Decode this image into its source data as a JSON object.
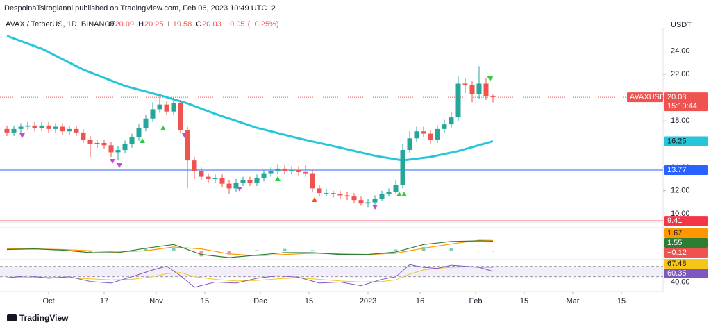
{
  "chart_data": {
    "type": "candlestick",
    "title": "DespoinaTsirogianni published on TradingView.com, Feb 06, 2023 10:49 UTC+2",
    "symbol": "AVAX / TetherUS, 1D, BINANCE",
    "ohlc_legend": [
      {
        "key": "O",
        "value": 20.09
      },
      {
        "key": "H",
        "value": 20.25
      },
      {
        "key": "L",
        "value": 19.58
      },
      {
        "key": "C",
        "value": 20.03
      }
    ],
    "change": {
      "value": -0.05,
      "label": "−0.05"
    },
    "change_pct": {
      "value": -0.25,
      "label": "(−0.25%)"
    },
    "currency": "USDT",
    "brand": "TradingView",
    "symbol_tag": "AVAXUSDT",
    "countdown": "15:10:44",
    "up_color": "#26a69a",
    "down_color": "#ef5350",
    "xlim": [
      -14,
      177
    ],
    "xticks": [
      {
        "value": 0,
        "label": "Oct"
      },
      {
        "value": 16,
        "label": "17"
      },
      {
        "value": 31,
        "label": "Nov"
      },
      {
        "value": 45,
        "label": "15"
      },
      {
        "value": 61,
        "label": "Dec"
      },
      {
        "value": 75,
        "label": "15"
      },
      {
        "value": 92,
        "label": "2023"
      },
      {
        "value": 107,
        "label": "16"
      },
      {
        "value": 123,
        "label": "Feb"
      },
      {
        "value": 137,
        "label": "15"
      },
      {
        "value": 151,
        "label": "Mar"
      },
      {
        "value": 165,
        "label": "15"
      }
    ],
    "ylim": [
      9.3,
      26
    ],
    "yticks": [
      {
        "value": 10,
        "label": "10.00"
      },
      {
        "value": 12,
        "label": "12.00"
      },
      {
        "value": 14,
        "label": "14.00"
      },
      {
        "value": 16,
        "label": "16.00"
      },
      {
        "value": 18,
        "label": "18.00"
      },
      {
        "value": 20,
        "label": "20.00"
      },
      {
        "value": 22,
        "label": "22.00"
      },
      {
        "value": 24,
        "label": "24.00"
      }
    ],
    "grid": false,
    "x": [
      -12,
      -10,
      -8,
      -6,
      -4,
      -2,
      0,
      2,
      4,
      6,
      8,
      10,
      12,
      14,
      16,
      18,
      20,
      22,
      24,
      26,
      28,
      30,
      32,
      34,
      36,
      38,
      40,
      42,
      44,
      46,
      48,
      50,
      52,
      54,
      56,
      58,
      60,
      62,
      64,
      66,
      68,
      70,
      72,
      74,
      76,
      78,
      80,
      82,
      84,
      86,
      88,
      90,
      92,
      94,
      96,
      98,
      100,
      102,
      104,
      106,
      108,
      110,
      112,
      114,
      116,
      118,
      120,
      122,
      124,
      126,
      128
    ],
    "open": [
      17.3,
      17.0,
      17.3,
      17.5,
      17.6,
      17.4,
      17.6,
      17.3,
      17.5,
      17.1,
      17.3,
      17.0,
      16.4,
      16.0,
      16.1,
      15.9,
      15.3,
      15.5,
      16.0,
      16.6,
      17.4,
      18.2,
      19.0,
      19.4,
      18.8,
      19.5,
      17.2,
      14.6,
      13.7,
      13.2,
      13.0,
      13.1,
      12.6,
      12.2,
      12.7,
      12.9,
      12.7,
      13.1,
      13.5,
      13.7,
      13.9,
      13.7,
      13.8,
      13.6,
      13.5,
      12.2,
      11.8,
      11.8,
      11.7,
      11.6,
      11.5,
      11.2,
      10.9,
      11.0,
      11.3,
      11.7,
      11.9,
      12.5,
      15.5,
      16.5,
      17.1,
      16.9,
      16.4,
      17.3,
      17.7,
      18.3,
      21.2,
      21.1,
      20.3,
      21.2,
      20.09
    ],
    "high": [
      17.6,
      17.6,
      17.8,
      17.9,
      17.9,
      17.9,
      17.9,
      17.8,
      17.8,
      17.6,
      17.6,
      17.3,
      16.7,
      16.4,
      16.4,
      16.2,
      15.8,
      16.3,
      16.9,
      17.7,
      18.5,
      19.6,
      20.3,
      19.7,
      20.0,
      19.8,
      17.5,
      14.9,
      14.0,
      13.5,
      13.4,
      13.4,
      12.9,
      13.0,
      13.2,
      13.2,
      13.4,
      13.8,
      14.0,
      14.3,
      14.2,
      14.1,
      14.1,
      14.2,
      13.8,
      12.5,
      12.1,
      12.0,
      12.0,
      11.9,
      11.8,
      11.5,
      11.3,
      11.6,
      12.0,
      12.2,
      12.9,
      16.0,
      17.1,
      17.5,
      17.5,
      17.2,
      17.6,
      18.1,
      18.8,
      21.8,
      21.7,
      21.4,
      22.7,
      21.7,
      20.25
    ],
    "low": [
      16.7,
      16.7,
      17.0,
      17.2,
      17.1,
      17.1,
      17.0,
      17.0,
      16.8,
      16.8,
      16.7,
      16.1,
      14.9,
      15.7,
      15.6,
      14.9,
      14.6,
      15.2,
      15.7,
      16.3,
      17.1,
      17.9,
      18.7,
      18.5,
      18.5,
      16.9,
      12.2,
      13.0,
      12.9,
      12.7,
      12.7,
      12.3,
      11.7,
      11.9,
      12.4,
      12.4,
      12.4,
      12.8,
      13.2,
      13.4,
      13.4,
      13.4,
      13.3,
      13.2,
      11.9,
      11.5,
      11.5,
      11.4,
      11.3,
      11.2,
      10.9,
      10.7,
      10.6,
      10.8,
      11.1,
      11.5,
      11.7,
      12.2,
      15.2,
      16.2,
      16.6,
      16.0,
      16.1,
      17.0,
      17.4,
      18.0,
      20.4,
      19.6,
      19.9,
      19.8,
      19.58
    ],
    "close": [
      17.0,
      17.3,
      17.5,
      17.6,
      17.4,
      17.6,
      17.3,
      17.5,
      17.1,
      17.3,
      17.0,
      16.4,
      16.0,
      16.1,
      15.9,
      15.3,
      15.5,
      16.0,
      16.6,
      17.4,
      18.2,
      19.0,
      19.4,
      18.8,
      19.5,
      17.2,
      14.6,
      13.7,
      13.2,
      13.0,
      13.1,
      12.6,
      12.2,
      12.7,
      12.9,
      12.7,
      13.1,
      13.5,
      13.7,
      13.9,
      13.7,
      13.8,
      13.6,
      13.5,
      12.2,
      11.8,
      11.8,
      11.7,
      11.6,
      11.5,
      11.2,
      10.9,
      11.0,
      11.3,
      11.7,
      11.9,
      12.5,
      15.5,
      16.5,
      17.1,
      16.9,
      16.4,
      17.3,
      17.7,
      18.3,
      21.2,
      21.1,
      20.3,
      21.2,
      20.1,
      20.03
    ],
    "ma": {
      "color": "#26c6da",
      "x": [
        -12,
        -2,
        10,
        22,
        32,
        40,
        48,
        60,
        72,
        84,
        94,
        102,
        110,
        118,
        128
      ],
      "values": [
        25.3,
        24.2,
        22.4,
        21.0,
        20.2,
        19.5,
        18.6,
        17.4,
        16.5,
        15.7,
        15.0,
        14.6,
        14.9,
        15.4,
        16.25
      ]
    },
    "hlines": [
      {
        "value": 13.77,
        "color": "#2962ff"
      },
      {
        "value": 9.41,
        "color": "#f23645"
      }
    ],
    "macd": {
      "ylim": [
        -1.2,
        3.5
      ],
      "x": [
        -12,
        -4,
        4,
        12,
        20,
        28,
        36,
        44,
        52,
        60,
        68,
        76,
        84,
        92,
        100,
        108,
        116,
        124,
        128
      ],
      "macd": [
        0.2,
        0.3,
        0.1,
        -0.3,
        -0.3,
        0.4,
        1.0,
        -0.6,
        -1.1,
        -0.7,
        -0.3,
        -0.3,
        -0.6,
        -0.6,
        -0.2,
        1.0,
        1.5,
        1.6,
        1.55
      ],
      "signal": [
        0.3,
        0.3,
        0.2,
        0.0,
        -0.2,
        0.0,
        0.6,
        0.3,
        -0.5,
        -0.8,
        -0.6,
        -0.4,
        -0.5,
        -0.6,
        -0.4,
        0.4,
        1.1,
        1.7,
        1.67
      ],
      "hist": [
        -0.1,
        0,
        -0.1,
        -0.3,
        -0.1,
        0.4,
        0.4,
        -0.9,
        -0.6,
        0.1,
        0.3,
        0.1,
        -0.1,
        0,
        0.2,
        0.6,
        0.4,
        -0.1,
        -0.12
      ],
      "hist_label": "−0.12",
      "macd_color": "#2e7d32",
      "signal_color": "#ff9800",
      "hist_color": "#ef5350"
    },
    "rsi": {
      "ylim": [
        22,
        80
      ],
      "band": [
        50,
        70
      ],
      "yticks": [
        {
          "value": 40,
          "label": "40.00"
        }
      ],
      "x": [
        -12,
        -6,
        0,
        6,
        12,
        18,
        24,
        30,
        34,
        38,
        42,
        48,
        54,
        60,
        66,
        72,
        78,
        84,
        90,
        96,
        100,
        104,
        108,
        112,
        116,
        120,
        124,
        128
      ],
      "values": [
        48,
        52,
        47,
        50,
        41,
        38,
        50,
        63,
        70,
        52,
        30,
        40,
        38,
        47,
        52,
        49,
        38,
        40,
        33,
        45,
        50,
        73,
        68,
        66,
        72,
        70,
        68,
        60.35
      ],
      "ma": [
        48,
        49,
        49,
        48,
        46,
        44,
        45,
        50,
        56,
        58,
        50,
        45,
        42,
        43,
        46,
        48,
        45,
        42,
        40,
        41,
        44,
        55,
        63,
        66,
        68,
        69,
        68,
        67.48
      ],
      "color": "#7e57c2",
      "ma_color": "#f5c518"
    }
  }
}
